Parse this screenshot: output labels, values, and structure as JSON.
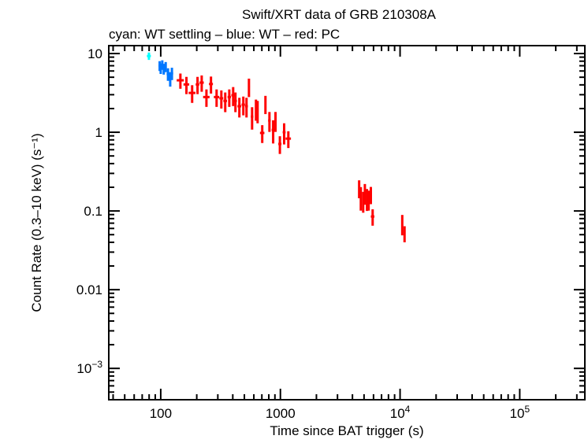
{
  "chart_data": {
    "type": "scatter",
    "title": "Swift/XRT data of GRB 210308A",
    "subtitle": "cyan: WT settling – blue: WT – red: PC",
    "xlabel": "Time since BAT trigger (s)",
    "ylabel": "Count Rate (0.3–10 keV) (s⁻¹)",
    "xscale": "log",
    "yscale": "log",
    "xlim": [
      36.8,
      350000
    ],
    "ylim": [
      0.0004,
      12.6
    ],
    "grid": false,
    "x_ticks": [
      {
        "value": 100,
        "label": "100"
      },
      {
        "value": 1000,
        "label": "1000"
      },
      {
        "value": 10000,
        "label": "10",
        "exp": "4"
      },
      {
        "value": 100000,
        "label": "10",
        "exp": "5"
      }
    ],
    "y_ticks": [
      {
        "value": 10,
        "label": "10"
      },
      {
        "value": 1,
        "label": "1"
      },
      {
        "value": 0.1,
        "label": "0.1"
      },
      {
        "value": 0.01,
        "label": "0.01"
      },
      {
        "value": 0.001,
        "label": "10",
        "exp": "−3"
      }
    ],
    "series": [
      {
        "name": "WT settling",
        "color": "#00ffff",
        "points": [
          [
            79.7,
            9.3,
            3,
            1.0
          ]
        ]
      },
      {
        "name": "WT",
        "color": "#0077ff",
        "points": [
          [
            98,
            7.0,
            2,
            1.0
          ],
          [
            100,
            6.5,
            2,
            1.0
          ],
          [
            103,
            7.2,
            2,
            1.0
          ],
          [
            106,
            6.4,
            2,
            1.0
          ],
          [
            110,
            6.8,
            2,
            1.0
          ],
          [
            115,
            5.5,
            3,
            1.0
          ],
          [
            120,
            4.8,
            3,
            1.0
          ],
          [
            124,
            5.6,
            3,
            1.0
          ]
        ]
      },
      {
        "name": "PC",
        "color": "#ff0000",
        "points": [
          [
            146,
            4.57,
            10,
            1.0
          ],
          [
            164,
            4.05,
            9,
            1.0
          ],
          [
            183,
            3.16,
            12,
            0.8
          ],
          [
            203,
            4.05,
            7,
            1.0
          ],
          [
            220,
            4.27,
            9,
            1.0
          ],
          [
            241,
            2.8,
            15,
            0.7
          ],
          [
            263,
            4.1,
            10,
            1.0
          ],
          [
            293,
            2.8,
            15,
            0.7
          ],
          [
            321,
            2.7,
            12,
            0.7
          ],
          [
            346,
            2.5,
            12,
            0.7
          ],
          [
            374,
            2.8,
            12,
            0.7
          ],
          [
            403,
            2.95,
            14,
            0.8
          ],
          [
            421,
            2.5,
            12,
            0.7
          ],
          [
            454,
            2.14,
            16,
            0.6
          ],
          [
            490,
            2.24,
            16,
            0.6
          ],
          [
            521,
            2.14,
            14,
            0.6
          ],
          [
            546,
            3.8,
            10,
            1.0
          ],
          [
            580,
            1.58,
            14,
            0.5
          ],
          [
            625,
            2.0,
            12,
            0.6
          ],
          [
            645,
            1.9,
            12,
            0.6
          ],
          [
            705,
            0.98,
            30,
            0.25
          ],
          [
            750,
            2.3,
            14,
            0.6
          ],
          [
            810,
            1.41,
            20,
            0.4
          ],
          [
            870,
            1.07,
            25,
            0.35
          ],
          [
            910,
            1.41,
            20,
            0.4
          ],
          [
            990,
            0.71,
            30,
            0.18
          ],
          [
            1075,
            1.0,
            30,
            0.3
          ],
          [
            1165,
            0.83,
            60,
            0.2
          ],
          [
            4550,
            0.195,
            40,
            0.05
          ],
          [
            4700,
            0.151,
            60,
            0.05
          ],
          [
            4920,
            0.135,
            80,
            0.04
          ],
          [
            5080,
            0.17,
            60,
            0.05
          ],
          [
            5290,
            0.145,
            80,
            0.045
          ],
          [
            5460,
            0.141,
            80,
            0.04
          ],
          [
            5700,
            0.162,
            80,
            0.04
          ],
          [
            5900,
            0.085,
            200,
            0.02
          ],
          [
            10430,
            0.069,
            150,
            0.02
          ],
          [
            10900,
            0.052,
            200,
            0.012
          ]
        ]
      }
    ]
  }
}
